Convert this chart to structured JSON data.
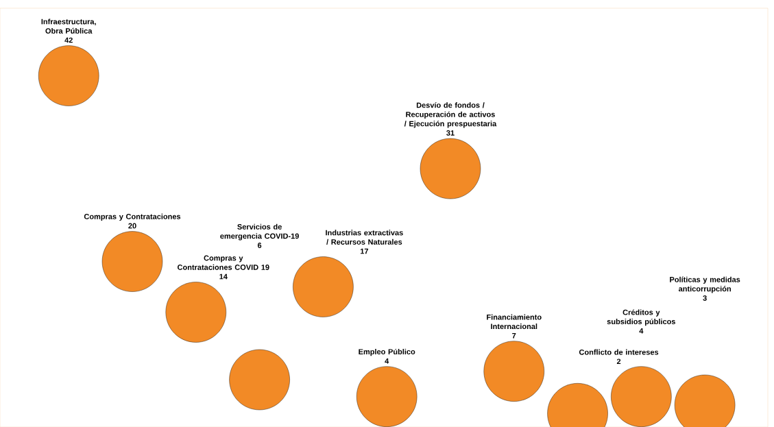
{
  "chart_data": {
    "type": "other",
    "categories": [
      "Infraestructura, Obra Pública",
      "Compras y Contrataciones",
      "Compras y Contrataciones COVID 19",
      "Servicios de emergencia COVID-19",
      "Industrias extractivas / Recursos Naturales",
      "Empleo Público",
      "Desvío de fondos / Recuperación de activos / Ejecución prespuestaria",
      "Financiamiento Internacional",
      "Conflicto de intereses",
      "Créditos y subsidios públicos",
      "Políticas y medidas anticorrupción"
    ],
    "values": [
      42,
      20,
      14,
      6,
      17,
      4,
      31,
      7,
      2,
      4,
      3
    ],
    "color": "#f28a26",
    "data_labels": true
  }
}
